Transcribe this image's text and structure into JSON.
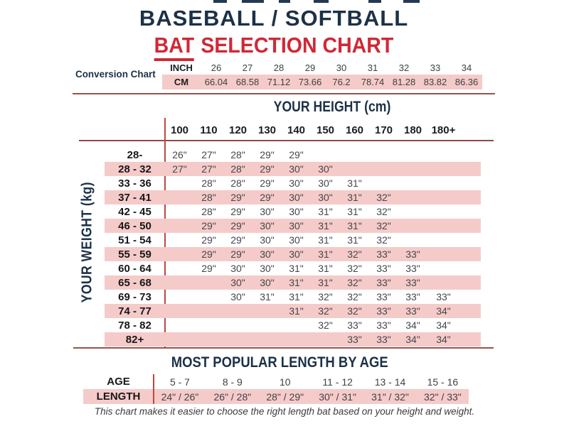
{
  "header": {
    "title_line1": "BASEBALL / SOFTBALL",
    "subtitle_highlight": "BAT",
    "subtitle_rest": "SELECTION CHART"
  },
  "footer": {
    "note": "This chart makes it easier to choose the right length bat based on your height and weight."
  },
  "colors": {
    "navy": "#1c3147",
    "red": "#d02836",
    "pink": "#f5cbc9",
    "rule_brown": "#95544d",
    "rule_red": "#bc4840"
  },
  "chart_data": [
    {
      "type": "table",
      "title": "Conversion Chart",
      "row_labels": [
        "INCH",
        "CM"
      ],
      "rows": [
        [
          "26",
          "27",
          "28",
          "29",
          "30",
          "31",
          "32",
          "33",
          "34"
        ],
        [
          "66.04",
          "68.58",
          "71.12",
          "73.66",
          "76.2",
          "78.74",
          "81.28",
          "83.82",
          "86.36"
        ]
      ]
    },
    {
      "type": "table",
      "title": "BAT SELECTION CHART",
      "x_axis_title": "YOUR HEIGHT (cm)",
      "y_axis_title": "YOUR WEIGHT (kg)",
      "columns": [
        "100",
        "110",
        "120",
        "130",
        "140",
        "150",
        "160",
        "170",
        "180",
        "180+"
      ],
      "rows": [
        {
          "label": "28-",
          "start": 0,
          "values": [
            "26\"",
            "27\"",
            "28\"",
            "29\"",
            "29\""
          ]
        },
        {
          "label": "28 - 32",
          "start": 0,
          "values": [
            "27\"",
            "27\"",
            "28\"",
            "29\"",
            "30\"",
            "30\""
          ]
        },
        {
          "label": "33 - 36",
          "start": 1,
          "values": [
            "28\"",
            "28\"",
            "29\"",
            "30\"",
            "30\"",
            "31\""
          ]
        },
        {
          "label": "37 - 41",
          "start": 1,
          "values": [
            "28\"",
            "29\"",
            "29\"",
            "30\"",
            "30\"",
            "31\"",
            "32\""
          ]
        },
        {
          "label": "42 - 45",
          "start": 1,
          "values": [
            "28\"",
            "29\"",
            "30\"",
            "30\"",
            "31\"",
            "31\"",
            "32\""
          ]
        },
        {
          "label": "46 - 50",
          "start": 1,
          "values": [
            "29\"",
            "29\"",
            "30\"",
            "30\"",
            "31\"",
            "31\"",
            "32\""
          ]
        },
        {
          "label": "51 - 54",
          "start": 1,
          "values": [
            "29\"",
            "29\"",
            "30\"",
            "30\"",
            "31\"",
            "31\"",
            "32\""
          ]
        },
        {
          "label": "55 - 59",
          "start": 1,
          "values": [
            "29\"",
            "29\"",
            "30\"",
            "30\"",
            "31\"",
            "32\"",
            "33\"",
            "33\""
          ]
        },
        {
          "label": "60 - 64",
          "start": 1,
          "values": [
            "29\"",
            "30\"",
            "30\"",
            "31\"",
            "31\"",
            "32\"",
            "33\"",
            "33\""
          ]
        },
        {
          "label": "65 - 68",
          "start": 2,
          "values": [
            "30\"",
            "30\"",
            "31\"",
            "31\"",
            "32\"",
            "33\"",
            "33\""
          ]
        },
        {
          "label": "69 - 73",
          "start": 2,
          "values": [
            "30\"",
            "31\"",
            "31\"",
            "32\"",
            "32\"",
            "33\"",
            "33\"",
            "33\""
          ]
        },
        {
          "label": "74 - 77",
          "start": 4,
          "values": [
            "31\"",
            "32\"",
            "32\"",
            "33\"",
            "33\"",
            "34\""
          ]
        },
        {
          "label": "78 - 82",
          "start": 5,
          "values": [
            "32\"",
            "33\"",
            "33\"",
            "34\"",
            "34\""
          ]
        },
        {
          "label": "82+",
          "start": 6,
          "values": [
            "33\"",
            "33\"",
            "34\"",
            "34\""
          ]
        }
      ]
    },
    {
      "type": "table",
      "title": "MOST POPULAR LENGTH BY AGE",
      "age_label": "AGE",
      "length_label": "LENGTH",
      "ages": [
        "5 - 7",
        "8 - 9",
        "10",
        "11 - 12",
        "13 - 14",
        "15 - 16"
      ],
      "lengths": [
        "24\" / 26\"",
        "26\" / 28\"",
        "28\" / 29\"",
        "30\" / 31\"",
        "31\" / 32\"",
        "32\" / 33\""
      ]
    }
  ]
}
